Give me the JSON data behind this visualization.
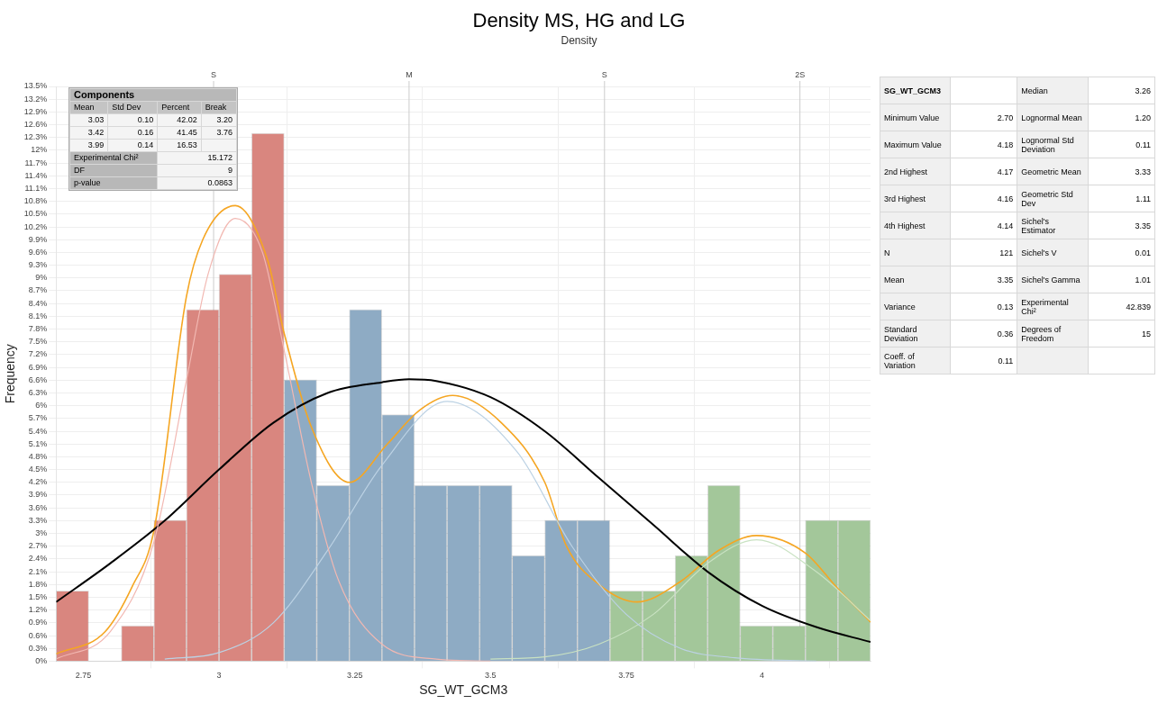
{
  "chart_data": [
    {
      "type": "histogram",
      "title": "Density MS, HG and LG",
      "subtitle": "Density",
      "xlabel": "SG_WT_GCM3",
      "ylabel": "Frequency",
      "bins": [
        2.7,
        2.76,
        2.82,
        2.88,
        2.94,
        3.0,
        3.06,
        3.12,
        3.18,
        3.24,
        3.3,
        3.36,
        3.42,
        3.48,
        3.54,
        3.6,
        3.66,
        3.72,
        3.78,
        3.84,
        3.9,
        3.96,
        4.02,
        4.08,
        4.14,
        4.2
      ],
      "values": [
        1.65,
        0,
        0.83,
        3.31,
        8.26,
        9.09,
        12.4,
        6.61,
        4.13,
        8.26,
        5.79,
        4.13,
        4.13,
        4.13,
        2.48,
        3.31,
        3.31,
        1.65,
        1.65,
        2.48,
        4.13,
        0.83,
        0.83,
        3.31,
        3.31
      ],
      "colors": [
        "#d9867f",
        "#d9867f",
        "#d9867f",
        "#d9867f",
        "#d9867f",
        "#d9867f",
        "#d9867f",
        "#8eabc4",
        "#8eabc4",
        "#8eabc4",
        "#8eabc4",
        "#8eabc4",
        "#8eabc4",
        "#8eabc4",
        "#8eabc4",
        "#8eabc4",
        "#8eabc4",
        "#a3c79a",
        "#a3c79a",
        "#a3c79a",
        "#a3c79a",
        "#a3c79a",
        "#a3c79a",
        "#a3c79a",
        "#a3c79a"
      ],
      "series": [
        {
          "type": "line",
          "color": "#f2b8b2",
          "x": [
            2.7,
            2.8,
            2.88,
            2.94,
            2.98,
            3.03,
            3.08,
            3.12,
            3.17,
            3.22,
            3.3,
            3.4,
            3.5
          ],
          "values": [
            0.05,
            0.7,
            2.8,
            6.6,
            9.1,
            10.4,
            9.6,
            7.3,
            4.2,
            1.9,
            0.4,
            0.05,
            0
          ]
        },
        {
          "type": "line",
          "color": "#bcd2e4",
          "x": [
            2.9,
            3.0,
            3.1,
            3.2,
            3.3,
            3.42,
            3.55,
            3.65,
            3.75,
            3.85,
            3.95,
            4.1
          ],
          "values": [
            0.05,
            0.2,
            0.9,
            2.6,
            4.6,
            6.1,
            4.9,
            2.7,
            1.1,
            0.3,
            0.08,
            0
          ]
        },
        {
          "type": "line",
          "color": "#c9e2c2",
          "x": [
            3.5,
            3.6,
            3.7,
            3.8,
            3.9,
            3.99,
            4.1,
            4.2
          ],
          "values": [
            0.05,
            0.1,
            0.4,
            1.1,
            2.3,
            2.85,
            2.1,
            0.95
          ]
        },
        {
          "type": "line",
          "color": "#000000",
          "x": [
            2.7,
            2.8,
            2.9,
            3.0,
            3.1,
            3.2,
            3.3,
            3.35,
            3.4,
            3.5,
            3.6,
            3.7,
            3.8,
            3.9,
            4.0,
            4.1,
            4.2
          ],
          "values": [
            1.39,
            2.3,
            3.3,
            4.5,
            5.6,
            6.3,
            6.55,
            6.62,
            6.58,
            6.2,
            5.4,
            4.3,
            3.2,
            2.1,
            1.3,
            0.8,
            0.45
          ]
        },
        {
          "type": "line",
          "color": "#f5a623",
          "x": [
            2.7,
            2.79,
            2.84,
            2.88,
            2.94,
            2.97,
            3.03,
            3.09,
            3.12,
            3.17,
            3.24,
            3.31,
            3.37,
            3.43,
            3.52,
            3.6,
            3.64,
            3.7,
            3.77,
            3.85,
            3.92,
            3.99,
            4.08,
            4.14,
            4.2
          ],
          "values": [
            0.17,
            0.69,
            1.75,
            3.06,
            8.57,
            9.9,
            10.7,
            9.4,
            7.7,
            5.5,
            4.2,
            5.1,
            5.9,
            6.24,
            5.6,
            4.2,
            2.7,
            1.8,
            1.39,
            1.87,
            2.6,
            2.95,
            2.54,
            1.7,
            0.92
          ]
        }
      ],
      "xlim": [
        2.7,
        4.2
      ],
      "xticks": [
        2.75,
        3,
        3.25,
        3.5,
        3.75,
        4
      ],
      "ref_lines": [
        {
          "axis": "x",
          "value": 2.99,
          "label": "S",
          "color": "#cccccc"
        },
        {
          "axis": "x",
          "value": 3.35,
          "label": "M",
          "color": "#cccccc"
        },
        {
          "axis": "x",
          "value": 3.71,
          "label": "S",
          "color": "#cccccc"
        },
        {
          "axis": "x",
          "value": 4.07,
          "label": "2S",
          "color": "#cccccc"
        }
      ],
      "ylim": [
        0,
        13.5
      ],
      "yticks": [
        {
          "value": 0,
          "label": "0%"
        },
        {
          "value": 0.3,
          "label": "0.3%"
        },
        {
          "value": 0.6,
          "label": "0.6%"
        },
        {
          "value": 0.9,
          "label": "0.9%"
        },
        {
          "value": 1.2,
          "label": "1.2%"
        },
        {
          "value": 1.5,
          "label": "1.5%"
        },
        {
          "value": 1.8,
          "label": "1.8%"
        },
        {
          "value": 2.1,
          "label": "2.1%"
        },
        {
          "value": 2.4,
          "label": "2.4%"
        },
        {
          "value": 2.7,
          "label": "2.7%"
        },
        {
          "value": 3,
          "label": "3%"
        },
        {
          "value": 3.3,
          "label": "3.3%"
        },
        {
          "value": 3.6,
          "label": "3.6%"
        },
        {
          "value": 3.9,
          "label": "3.9%"
        },
        {
          "value": 4.2,
          "label": "4.2%"
        },
        {
          "value": 4.5,
          "label": "4.5%"
        },
        {
          "value": 4.8,
          "label": "4.8%"
        },
        {
          "value": 5.1,
          "label": "5.1%"
        },
        {
          "value": 5.4,
          "label": "5.4%"
        },
        {
          "value": 5.7,
          "label": "5.7%"
        },
        {
          "value": 6,
          "label": "6%"
        },
        {
          "value": 6.3,
          "label": "6.3%"
        },
        {
          "value": 6.6,
          "label": "6.6%"
        },
        {
          "value": 6.9,
          "label": "6.9%"
        },
        {
          "value": 7.2,
          "label": "7.2%"
        },
        {
          "value": 7.5,
          "label": "7.5%"
        },
        {
          "value": 7.8,
          "label": "7.8%"
        },
        {
          "value": 8.1,
          "label": "8.1%"
        },
        {
          "value": 8.4,
          "label": "8.4%"
        },
        {
          "value": 8.7,
          "label": "8.7%"
        },
        {
          "value": 9,
          "label": "9%"
        },
        {
          "value": 9.3,
          "label": "9.3%"
        },
        {
          "value": 9.6,
          "label": "9.6%"
        },
        {
          "value": 9.9,
          "label": "9.9%"
        },
        {
          "value": 10.2,
          "label": "10.2%"
        },
        {
          "value": 10.5,
          "label": "10.5%"
        },
        {
          "value": 10.8,
          "label": "10.8%"
        },
        {
          "value": 11.1,
          "label": "11.1%"
        },
        {
          "value": 11.4,
          "label": "11.4%"
        },
        {
          "value": 11.7,
          "label": "11.7%"
        },
        {
          "value": 12,
          "label": "12%"
        },
        {
          "value": 12.3,
          "label": "12.3%"
        },
        {
          "value": 12.6,
          "label": "12.6%"
        },
        {
          "value": 12.9,
          "label": "12.9%"
        },
        {
          "value": 13.2,
          "label": "13.2%"
        },
        {
          "value": 13.5,
          "label": "13.5%"
        }
      ],
      "grid": true
    },
    {
      "type": "other",
      "title": "Components",
      "categories": [
        "Mean",
        "Std Dev",
        "Percent",
        "Break"
      ],
      "cell_labels": [
        [
          "3.03",
          "0.10",
          "42.02",
          "3.20"
        ],
        [
          "3.42",
          "0.16",
          "41.45",
          "3.76"
        ],
        [
          "3.99",
          "0.14",
          "16.53",
          null
        ]
      ],
      "annotations": [
        "Experimental Chi²",
        "15.172",
        "DF",
        "9",
        "p-value",
        "0.0863"
      ]
    },
    {
      "type": "other",
      "title": "SG_WT_GCM3",
      "categories": [
        "Minimum Value",
        "Maximum Value",
        "2nd Highest",
        "3rd Highest",
        "4th Highest",
        "N",
        "Mean",
        "Variance",
        "Standard Deviation",
        "Coeff. of Variation",
        "Median",
        "Lognormal Mean",
        "Lognormal Std Deviation",
        "Geometric Mean",
        "Geometric Std Dev",
        "Sichel's Estimator",
        "Sichel's V",
        "Sichel's Gamma",
        "Experimental Chi²",
        "Degrees of Freedom"
      ],
      "value_labels": [
        "2.70",
        "4.18",
        "4.17",
        "4.16",
        "4.14",
        "121",
        "3.35",
        "0.13",
        "0.36",
        "0.11",
        "3.26",
        "1.20",
        "0.11",
        "3.33",
        "1.11",
        "3.35",
        "0.01",
        "1.01",
        "42.839",
        "15"
      ]
    }
  ]
}
